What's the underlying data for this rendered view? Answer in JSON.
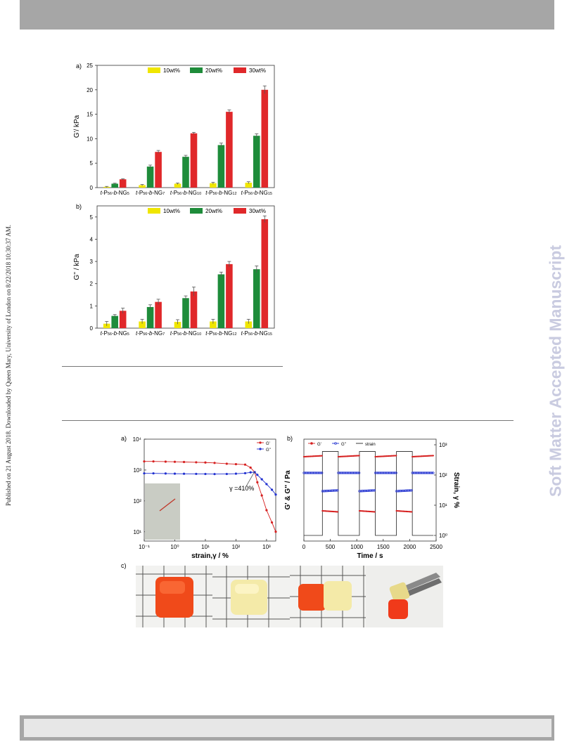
{
  "header_bar": "",
  "side_text": "Published on 21 August 2018. Downloaded by Queen Mary, University of London on 8/22/2018 10:30:37 AM.",
  "watermark": "Soft Matter Accepted Manuscript",
  "figure1": {
    "panel_a": {
      "label": "a)",
      "chart_data": {
        "type": "bar",
        "ylabel": "G'/ kPa",
        "ylim": [
          0,
          25
        ],
        "yticks": [
          "0",
          "5",
          "10",
          "15",
          "20",
          "25"
        ],
        "categories": [
          "t-P56-b-NG5",
          "t-P56-b-NG7",
          "t-P56-b-NG10",
          "t-P56-b-NG12",
          "t-P56-b-NG15"
        ],
        "series": [
          {
            "name": "10wt%",
            "color": "#f0e600",
            "values": [
              0.15,
              0.5,
              0.8,
              0.9,
              1.0
            ],
            "errors": [
              0.1,
              0.15,
              0.15,
              0.2,
              0.2
            ]
          },
          {
            "name": "20wt%",
            "color": "#1e8c3a",
            "values": [
              0.8,
              4.3,
              6.3,
              8.7,
              10.6
            ],
            "errors": [
              0.1,
              0.3,
              0.3,
              0.4,
              0.4
            ]
          },
          {
            "name": "30wt%",
            "color": "#e0282a",
            "values": [
              1.7,
              7.3,
              11.1,
              15.5,
              20.0
            ],
            "errors": [
              0.1,
              0.3,
              0.2,
              0.4,
              0.8
            ]
          }
        ]
      }
    },
    "panel_b": {
      "label": "b)",
      "chart_data": {
        "type": "bar",
        "ylabel": "G'' / kPa",
        "ylim": [
          0,
          5.5
        ],
        "yticks": [
          "0",
          "1",
          "2",
          "3",
          "4",
          "5"
        ],
        "categories": [
          "t-P56-b-NG5",
          "t-P56-b-NG7",
          "t-P56-b-NG10",
          "t-P56-b-NG12",
          "t-P56-b-NG15"
        ],
        "series": [
          {
            "name": "10wt%",
            "color": "#f0e600",
            "values": [
              0.2,
              0.3,
              0.28,
              0.3,
              0.3
            ],
            "errors": [
              0.1,
              0.1,
              0.1,
              0.1,
              0.1
            ]
          },
          {
            "name": "20wt%",
            "color": "#1e8c3a",
            "values": [
              0.55,
              0.95,
              1.35,
              2.42,
              2.65
            ],
            "errors": [
              0.06,
              0.1,
              0.1,
              0.1,
              0.15
            ]
          },
          {
            "name": "30wt%",
            "color": "#e0282a",
            "values": [
              0.78,
              1.18,
              1.65,
              2.88,
              4.9
            ],
            "errors": [
              0.12,
              0.12,
              0.2,
              0.12,
              0.15
            ]
          }
        ]
      }
    }
  },
  "figure2": {
    "panel_a": {
      "label": "a)",
      "chart_data": {
        "type": "line",
        "xscale": "log",
        "yscale": "log",
        "xlabel": "strain,γ / %",
        "xticks": [
          "10⁻¹",
          "10⁰",
          "10¹",
          "10²",
          "10³"
        ],
        "yticks": [
          "10¹",
          "10²",
          "10³",
          "10⁴"
        ],
        "xlim": [
          0.1,
          2000
        ],
        "ylim": [
          5,
          10000
        ],
        "annotation": "γ =410%",
        "annotation_x": 410,
        "series": [
          {
            "name": "G'",
            "color": "#d62020",
            "x": [
              0.1,
              0.2,
              0.5,
              1,
              2,
              5,
              10,
              20,
              50,
              100,
              200,
              300,
              410,
              500,
              700,
              1000,
              1500,
              2000
            ],
            "y": [
              1900,
              1900,
              1870,
              1850,
              1820,
              1780,
              1750,
              1700,
              1600,
              1550,
              1500,
              1200,
              850,
              400,
              150,
              50,
              20,
              10
            ]
          },
          {
            "name": "G\"",
            "color": "#2030d0",
            "x": [
              0.1,
              0.2,
              0.5,
              1,
              2,
              5,
              10,
              20,
              50,
              100,
              200,
              300,
              410,
              500,
              700,
              1000,
              1500,
              2000
            ],
            "y": [
              780,
              780,
              770,
              760,
              755,
              750,
              745,
              740,
              745,
              760,
              790,
              840,
              850,
              700,
              500,
              350,
              230,
              160
            ]
          }
        ]
      },
      "inset": {
        "shown": true
      }
    },
    "panel_b": {
      "label": "b)",
      "chart_data": {
        "type": "line",
        "xlabel": "Time / s",
        "ylabel": "G' & G'' / Pa",
        "y2label": "Strain, γ %",
        "xlim": [
          0,
          2500
        ],
        "xticks": [
          "0",
          "500",
          "1000",
          "1500",
          "2000",
          "2500"
        ],
        "y2ticks": [
          "10⁰",
          "10¹",
          "10²",
          "10³"
        ],
        "legend": [
          "G'",
          "G''",
          "strain"
        ],
        "strain_x": [
          0,
          350,
          350,
          650,
          650,
          1050,
          1050,
          1350,
          1350,
          1750,
          1750,
          2050,
          2050,
          2450
        ],
        "strain_y": [
          1,
          1,
          600,
          600,
          1,
          1,
          600,
          600,
          1,
          1,
          600,
          600,
          1,
          1
        ]
      }
    },
    "panel_c": {
      "label": "c)"
    }
  },
  "colors": {
    "accent_red": "#e0282a",
    "accent_green": "#1e8c3a",
    "accent_yellow": "#f0e600",
    "blue": "#2030d0"
  }
}
